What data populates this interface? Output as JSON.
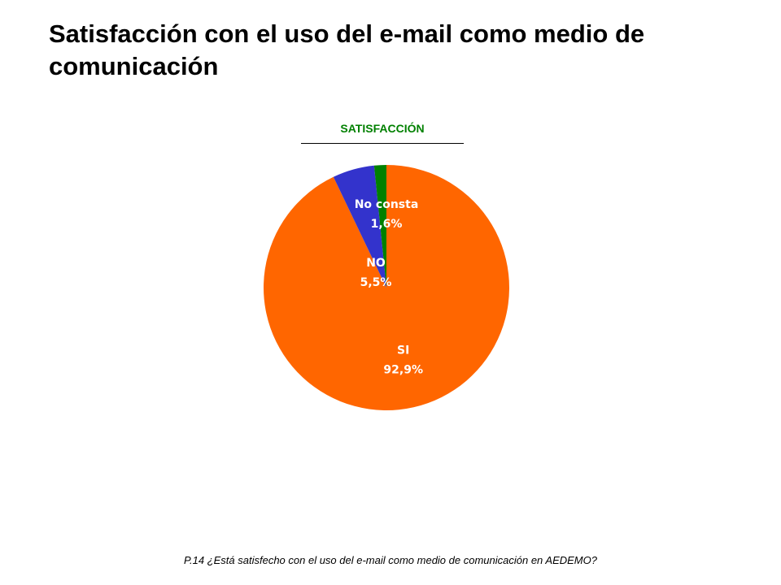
{
  "slide": {
    "title": "Satisfacción con el uso del e-mail como medio de comunicación",
    "footer": "P.14 ¿Está satisfecho con el uso del e-mail como medio de comunicación en AEDEMO?"
  },
  "chart_data": {
    "type": "pie",
    "title": "SATISFACCIÓN",
    "start_angle_deg": 0,
    "direction": "clockwise",
    "slices": [
      {
        "label": "SI",
        "value": 92.9,
        "value_label": "92,9%",
        "color": "#FF6600"
      },
      {
        "label": "NO",
        "value": 5.5,
        "value_label": "5,5%",
        "color": "#3333CC"
      },
      {
        "label": "No consta",
        "value": 1.6,
        "value_label": "1,6%",
        "color": "#008000"
      }
    ],
    "colors": {
      "title": "#008000",
      "label_text": "#FFFFFF"
    }
  }
}
